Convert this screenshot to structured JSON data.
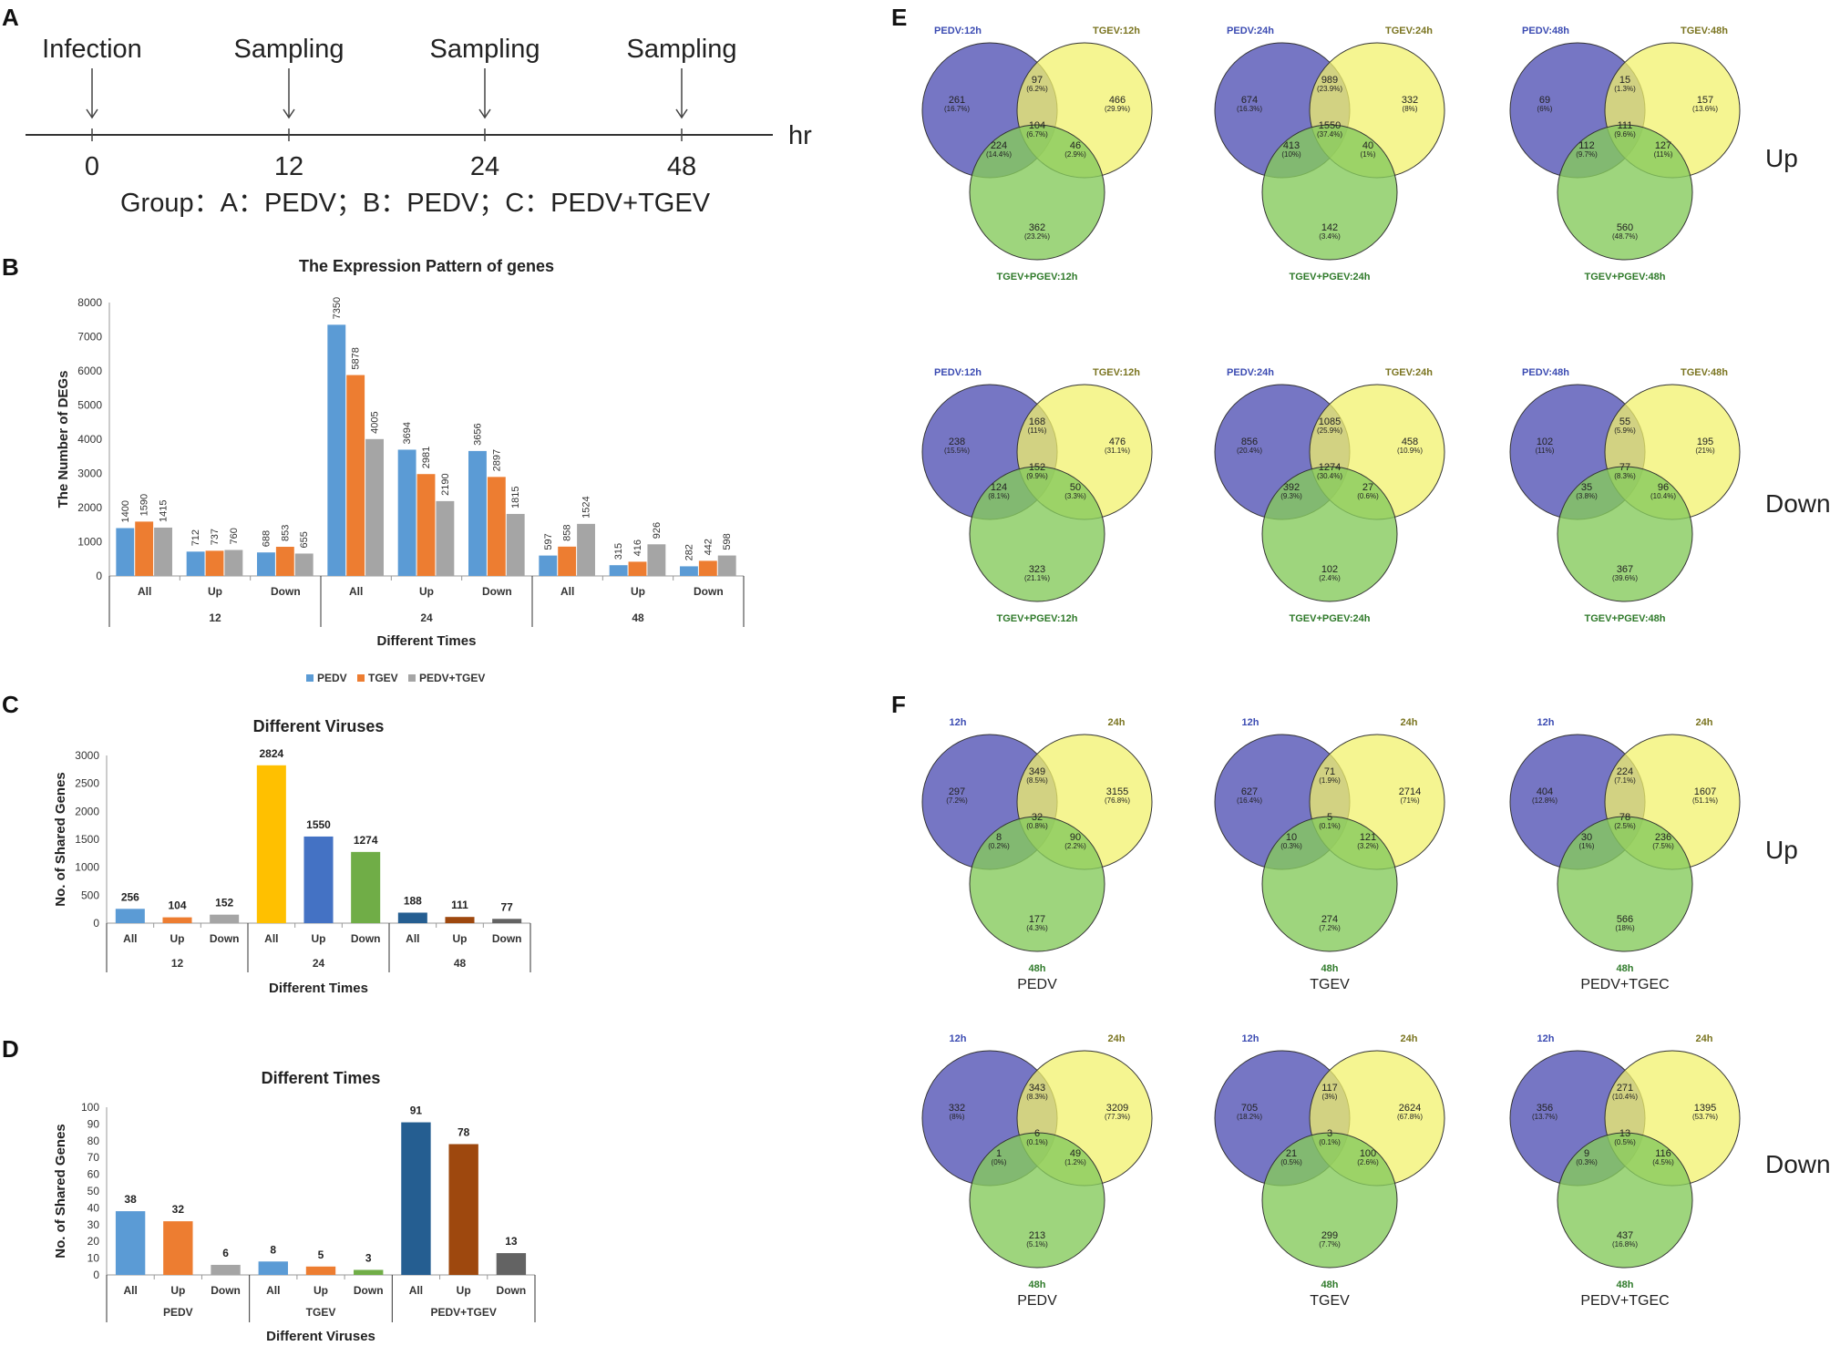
{
  "panels": {
    "a": "A",
    "b": "B",
    "c": "C",
    "d": "D",
    "e": "E",
    "f": "F"
  },
  "colors": {
    "pedv": "#5b9bd5",
    "tgev": "#ed7d31",
    "both": "#a5a5a5",
    "c_all12": "#5b9bd5",
    "c_up12": "#ed7d31",
    "c_down12": "#a5a5a5",
    "c_all24": "#ffc000",
    "c_up24": "#4472c4",
    "c_down24": "#70ad47",
    "c_all48": "#255e91",
    "c_up48": "#9e480e",
    "c_down48": "#636363",
    "venn_blue": "#6f6fc1",
    "venn_yellow": "#f1f26c",
    "venn_green": "#86cb5c"
  },
  "timeline": {
    "events": [
      "Infection",
      "Sampling",
      "Sampling",
      "Sampling"
    ],
    "ticks": [
      "0",
      "12",
      "24",
      "48"
    ],
    "unit": "hr",
    "group": "Group：A：PEDV；B：PEDV；C：PEDV+TGEV"
  },
  "chart_data": [
    {
      "id": "B",
      "type": "bar",
      "title": "The Expression Pattern of genes",
      "ylabel": "The Number of DEGs",
      "xlabel": "Different Times",
      "ylim": [
        0,
        8000
      ],
      "yticks": [
        "0",
        "1000",
        "2000",
        "3000",
        "4000",
        "5000",
        "6000",
        "7000",
        "8000"
      ],
      "groups": [
        "12",
        "24",
        "48"
      ],
      "categories": [
        "All",
        "Up",
        "Down",
        "All",
        "Up",
        "Down",
        "All",
        "Up",
        "Down"
      ],
      "series": [
        {
          "name": "PEDV",
          "values": [
            1400,
            712,
            688,
            7350,
            3694,
            3656,
            597,
            315,
            282
          ]
        },
        {
          "name": "TGEV",
          "values": [
            1590,
            737,
            853,
            5878,
            2981,
            2897,
            858,
            416,
            442
          ]
        },
        {
          "name": "PEDV+TGEV",
          "values": [
            1415,
            760,
            655,
            4005,
            2190,
            1815,
            1524,
            926,
            598
          ]
        }
      ],
      "legend": [
        "PEDV",
        "TGEV",
        "PEDV+TGEV"
      ]
    },
    {
      "id": "C",
      "type": "bar",
      "title": "Different Viruses",
      "ylabel": "No. of Shared Genes",
      "xlabel": "Different Times",
      "ylim": [
        0,
        3000
      ],
      "yticks": [
        "0",
        "500",
        "1000",
        "1500",
        "2000",
        "2500",
        "3000"
      ],
      "groups": [
        "12",
        "24",
        "48"
      ],
      "categories": [
        "All",
        "Up",
        "Down",
        "All",
        "Up",
        "Down",
        "All",
        "Up",
        "Down"
      ],
      "values": [
        256,
        104,
        152,
        2824,
        1550,
        1274,
        188,
        111,
        77
      ],
      "labels": [
        "256",
        "104",
        "152",
        "2824",
        "1550",
        "1274",
        "188",
        "111",
        "77"
      ]
    },
    {
      "id": "D",
      "type": "bar",
      "title": "Different Times",
      "ylabel": "No. of Shared Genes",
      "xlabel": "Different Viruses",
      "ylim": [
        0,
        100
      ],
      "yticks": [
        "0",
        "10",
        "20",
        "30",
        "40",
        "50",
        "60",
        "70",
        "80",
        "90",
        "100"
      ],
      "groups": [
        "PEDV",
        "TGEV",
        "PEDV+TGEV"
      ],
      "categories": [
        "All",
        "Up",
        "Down",
        "All",
        "Up",
        "Down",
        "All",
        "Up",
        "Down"
      ],
      "values": [
        38,
        32,
        6,
        8,
        5,
        3,
        91,
        78,
        13
      ],
      "labels": [
        "38",
        "32",
        "6",
        "8",
        "5",
        "3",
        "91",
        "78",
        "13"
      ]
    }
  ],
  "venn": {
    "e_side": [
      "Up",
      "Down"
    ],
    "f_side": [
      "Up",
      "Down"
    ],
    "e": [
      {
        "l1": "PEDV:12h",
        "l2": "TGEV:12h",
        "l3": "TGEV+PGEV:12h",
        "title": "",
        "n": [
          "261",
          "466",
          "362",
          "97",
          "224",
          "46",
          "104"
        ],
        "p": [
          "(16.7%)",
          "(29.9%)",
          "(23.2%)",
          "(6.2%)",
          "(14.4%)",
          "(2.9%)",
          "(6.7%)"
        ]
      },
      {
        "l1": "PEDV:24h",
        "l2": "TGEV:24h",
        "l3": "TGEV+PGEV:24h",
        "title": "",
        "n": [
          "674",
          "332",
          "142",
          "989",
          "413",
          "40",
          "1550"
        ],
        "p": [
          "(16.3%)",
          "(8%)",
          "(3.4%)",
          "(23.9%)",
          "(10%)",
          "(1%)",
          "(37.4%)"
        ]
      },
      {
        "l1": "PEDV:48h",
        "l2": "TGEV:48h",
        "l3": "TGEV+PGEV:48h",
        "title": "",
        "n": [
          "69",
          "157",
          "560",
          "15",
          "112",
          "127",
          "111"
        ],
        "p": [
          "(6%)",
          "(13.6%)",
          "(48.7%)",
          "(1.3%)",
          "(9.7%)",
          "(11%)",
          "(9.6%)"
        ]
      },
      {
        "l1": "PEDV:12h",
        "l2": "TGEV:12h",
        "l3": "TGEV+PGEV:12h",
        "title": "",
        "n": [
          "238",
          "476",
          "323",
          "168",
          "124",
          "50",
          "152"
        ],
        "p": [
          "(15.5%)",
          "(31.1%)",
          "(21.1%)",
          "(11%)",
          "(8.1%)",
          "(3.3%)",
          "(9.9%)"
        ]
      },
      {
        "l1": "PEDV:24h",
        "l2": "TGEV:24h",
        "l3": "TGEV+PGEV:24h",
        "title": "",
        "n": [
          "856",
          "458",
          "102",
          "1085",
          "392",
          "27",
          "1274"
        ],
        "p": [
          "(20.4%)",
          "(10.9%)",
          "(2.4%)",
          "(25.9%)",
          "(9.3%)",
          "(0.6%)",
          "(30.4%)"
        ]
      },
      {
        "l1": "PEDV:48h",
        "l2": "TGEV:48h",
        "l3": "TGEV+PGEV:48h",
        "title": "",
        "n": [
          "102",
          "195",
          "367",
          "55",
          "35",
          "96",
          "77"
        ],
        "p": [
          "(11%)",
          "(21%)",
          "(39.6%)",
          "(5.9%)",
          "(3.8%)",
          "(10.4%)",
          "(8.3%)"
        ]
      }
    ],
    "f": [
      {
        "l1": "12h",
        "l2": "24h",
        "l3": "48h",
        "title": "PEDV",
        "n": [
          "297",
          "3155",
          "177",
          "349",
          "8",
          "90",
          "32"
        ],
        "p": [
          "(7.2%)",
          "(76.8%)",
          "(4.3%)",
          "(8.5%)",
          "(0.2%)",
          "(2.2%)",
          "(0.8%)"
        ]
      },
      {
        "l1": "12h",
        "l2": "24h",
        "l3": "48h",
        "title": "TGEV",
        "n": [
          "627",
          "2714",
          "274",
          "71",
          "10",
          "121",
          "5"
        ],
        "p": [
          "(16.4%)",
          "(71%)",
          "(7.2%)",
          "(1.9%)",
          "(0.3%)",
          "(3.2%)",
          "(0.1%)"
        ]
      },
      {
        "l1": "12h",
        "l2": "24h",
        "l3": "48h",
        "title": "PEDV+TGEC",
        "n": [
          "404",
          "1607",
          "566",
          "224",
          "30",
          "236",
          "78"
        ],
        "p": [
          "(12.8%)",
          "(51.1%)",
          "(18%)",
          "(7.1%)",
          "(1%)",
          "(7.5%)",
          "(2.5%)"
        ]
      },
      {
        "l1": "12h",
        "l2": "24h",
        "l3": "48h",
        "title": "PEDV",
        "n": [
          "332",
          "3209",
          "213",
          "343",
          "1",
          "49",
          "6"
        ],
        "p": [
          "(8%)",
          "(77.3%)",
          "(5.1%)",
          "(8.3%)",
          "(0%)",
          "(1.2%)",
          "(0.1%)"
        ]
      },
      {
        "l1": "12h",
        "l2": "24h",
        "l3": "48h",
        "title": "TGEV",
        "n": [
          "705",
          "2624",
          "299",
          "117",
          "21",
          "100",
          "3"
        ],
        "p": [
          "(18.2%)",
          "(67.8%)",
          "(7.7%)",
          "(3%)",
          "(0.5%)",
          "(2.6%)",
          "(0.1%)"
        ]
      },
      {
        "l1": "12h",
        "l2": "24h",
        "l3": "48h",
        "title": "PEDV+TGEC",
        "n": [
          "356",
          "1395",
          "437",
          "271",
          "9",
          "116",
          "13"
        ],
        "p": [
          "(13.7%)",
          "(53.7%)",
          "(16.8%)",
          "(10.4%)",
          "(0.3%)",
          "(4.5%)",
          "(0.5%)"
        ]
      }
    ]
  }
}
